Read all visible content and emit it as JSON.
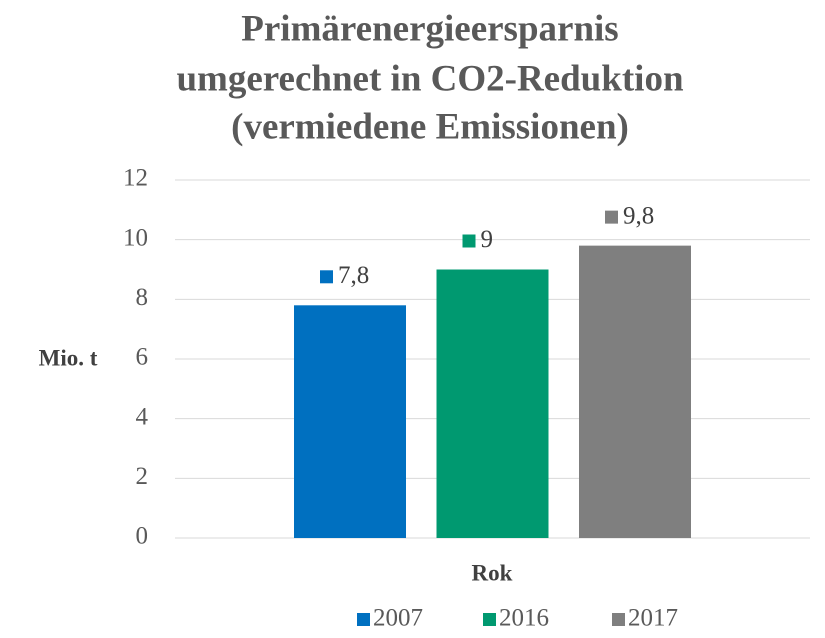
{
  "chart_data": {
    "type": "bar",
    "title": [
      "Primärenergieersparnis",
      "umgerechnet in CO2-Reduktion",
      "(vermiedene Emissionen)"
    ],
    "y_label": "Mio. t",
    "x_label": "Rok",
    "categories": [
      null
    ],
    "series": [
      {
        "name": "2007",
        "color": "#0070c0",
        "values": [
          7.8
        ],
        "value_labels": [
          "7,8"
        ]
      },
      {
        "name": "2016",
        "color": "#009970",
        "values": [
          9
        ],
        "value_labels": [
          "9"
        ]
      },
      {
        "name": "2017",
        "color": "#7f7f7f",
        "values": [
          9.8
        ],
        "value_labels": [
          "9,8"
        ]
      }
    ],
    "ylim": [
      0,
      12
    ],
    "yticks": [
      0,
      2,
      4,
      6,
      8,
      10,
      12
    ],
    "grid": true,
    "legend": "bottom"
  }
}
